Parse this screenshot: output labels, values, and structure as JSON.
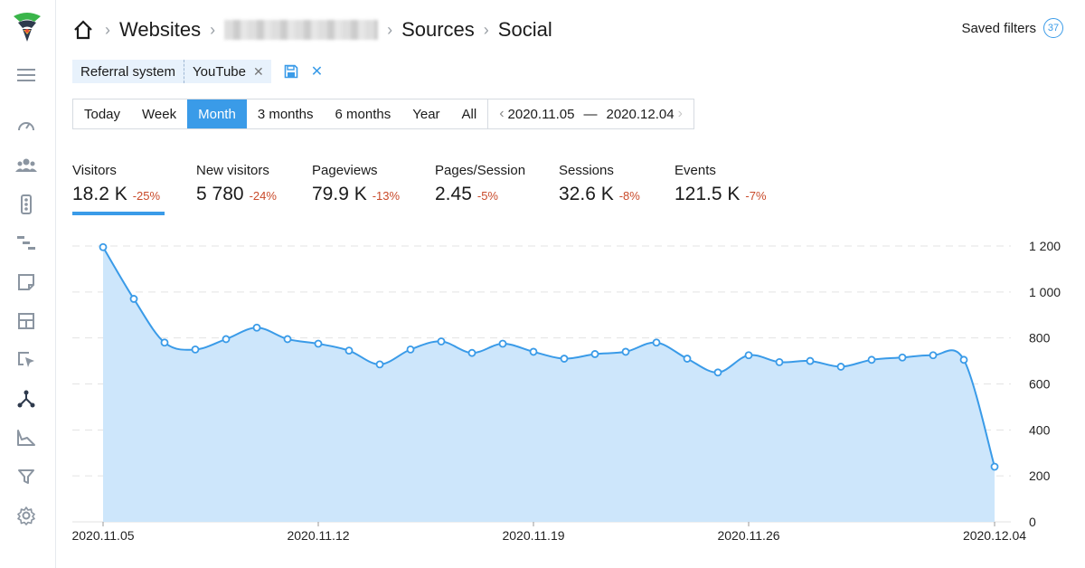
{
  "breadcrumb": {
    "items": [
      "Websites",
      "Sources",
      "Social"
    ]
  },
  "saved_filters": {
    "label": "Saved filters",
    "count": "37"
  },
  "filters": [
    {
      "key": "Referral system",
      "value": "YouTube"
    }
  ],
  "period": {
    "buttons": [
      "Today",
      "Week",
      "Month",
      "3 months",
      "6 months",
      "Year",
      "All"
    ],
    "active": "Month",
    "date_from": "2020.11.05",
    "date_to": "2020.12.04",
    "dash": "—"
  },
  "metrics": [
    {
      "label": "Visitors",
      "value": "18.2 K",
      "delta": "-25%"
    },
    {
      "label": "New visitors",
      "value": "5 780",
      "delta": "-24%"
    },
    {
      "label": "Pageviews",
      "value": "79.9 K",
      "delta": "-13%"
    },
    {
      "label": "Pages/Session",
      "value": "2.45",
      "delta": "-5%"
    },
    {
      "label": "Sessions",
      "value": "32.6 K",
      "delta": "-8%"
    },
    {
      "label": "Events",
      "value": "121.5 K",
      "delta": "-7%"
    }
  ],
  "icons": {
    "home": "home-icon",
    "sidebar": [
      "menu-icon",
      "speedometer-icon",
      "users-icon",
      "traffic-light-icon",
      "gantt-icon",
      "note-icon",
      "layout-icon",
      "cursor-click-icon",
      "sources-icon",
      "area-chart-icon",
      "funnel-icon",
      "gear-icon"
    ]
  },
  "colors": {
    "accent": "#3a9be8",
    "fill": "#cde6fb",
    "negative": "#c94a2a"
  },
  "chart_data": {
    "type": "area",
    "x": [
      "2020.11.05",
      "2020.11.06",
      "2020.11.07",
      "2020.11.08",
      "2020.11.09",
      "2020.11.10",
      "2020.11.11",
      "2020.11.12",
      "2020.11.13",
      "2020.11.14",
      "2020.11.15",
      "2020.11.16",
      "2020.11.17",
      "2020.11.18",
      "2020.11.19",
      "2020.11.20",
      "2020.11.21",
      "2020.11.22",
      "2020.11.23",
      "2020.11.24",
      "2020.11.25",
      "2020.11.26",
      "2020.11.27",
      "2020.11.28",
      "2020.11.29",
      "2020.11.30",
      "2020.12.01",
      "2020.12.02",
      "2020.12.03",
      "2020.12.04"
    ],
    "values": [
      1195,
      970,
      780,
      750,
      795,
      845,
      795,
      775,
      745,
      685,
      750,
      785,
      735,
      775,
      740,
      710,
      730,
      740,
      780,
      710,
      650,
      725,
      695,
      700,
      675,
      705,
      715,
      725,
      705,
      240
    ],
    "x_tick_labels": [
      "2020.11.05",
      "2020.11.12",
      "2020.11.19",
      "2020.11.26",
      "2020.12.04"
    ],
    "y_tick_labels": [
      "1 200",
      "1 000",
      "800",
      "600",
      "400",
      "200",
      "0"
    ],
    "y_ticks": [
      1200,
      1000,
      800,
      600,
      400,
      200,
      0
    ],
    "ylim": [
      0,
      1200
    ],
    "grid": true
  }
}
